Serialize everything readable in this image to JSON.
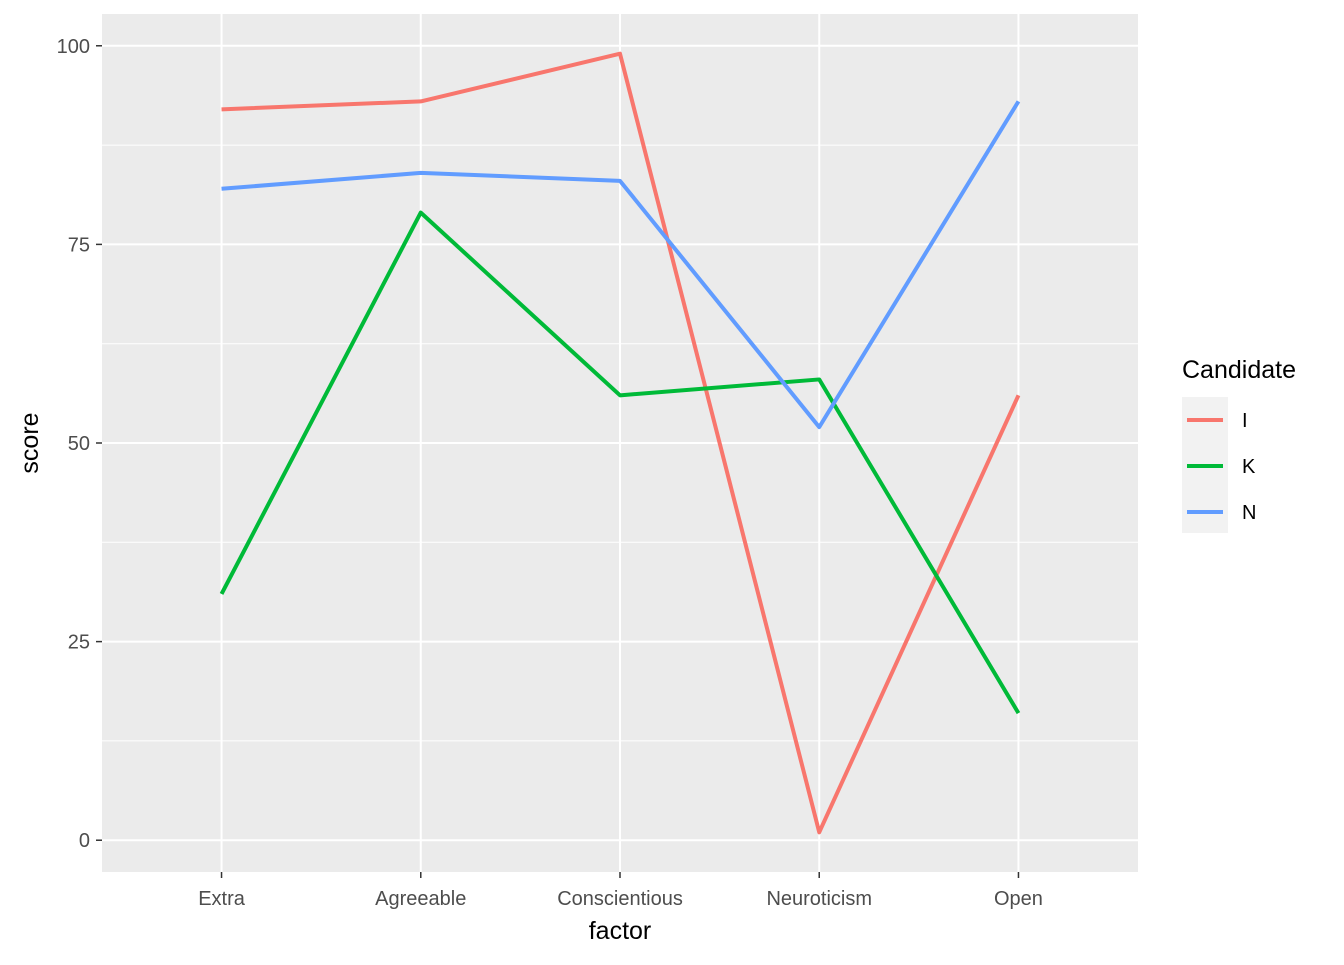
{
  "chart_data": {
    "type": "line",
    "xlabel": "factor",
    "ylabel": "score",
    "categories": [
      "Extra",
      "Agreeable",
      "Conscientious",
      "Neuroticism",
      "Open"
    ],
    "ylim": [
      -4,
      104
    ],
    "yticks": [
      0,
      25,
      50,
      75,
      100
    ],
    "grid": true,
    "legend": {
      "title": "Candidate",
      "placement": "right"
    },
    "series": [
      {
        "name": "I",
        "color": "#F8766D",
        "values": [
          92,
          93,
          99,
          1,
          56
        ]
      },
      {
        "name": "K",
        "color": "#00BA38",
        "values": [
          31,
          79,
          56,
          58,
          16
        ]
      },
      {
        "name": "N",
        "color": "#619CFF",
        "values": [
          82,
          84,
          83,
          52,
          93
        ]
      }
    ]
  }
}
